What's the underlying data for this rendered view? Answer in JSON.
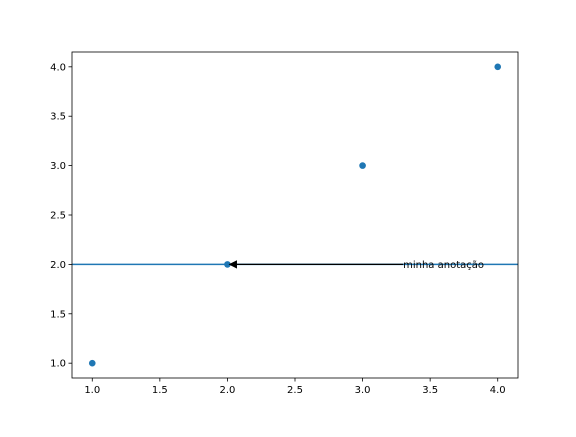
{
  "chart_data": {
    "type": "scatter",
    "series": [
      {
        "x": [
          1.0,
          2.0,
          3.0,
          4.0
        ],
        "y": [
          1.0,
          2.0,
          3.0,
          4.0
        ],
        "color": "#1f77b4"
      }
    ],
    "hline": {
      "y": 2.0,
      "color": "#1f77b4"
    },
    "annotation": {
      "text": "minha anotação",
      "point_xy": [
        2.0,
        2.0
      ],
      "text_xy": [
        3.3,
        2.0
      ],
      "arrow_color": "#000000"
    },
    "xlim": [
      0.85,
      4.15
    ],
    "ylim": [
      0.85,
      4.15
    ],
    "xticks": [
      1.0,
      1.5,
      2.0,
      2.5,
      3.0,
      3.5,
      4.0
    ],
    "yticks": [
      1.0,
      1.5,
      2.0,
      2.5,
      3.0,
      3.5,
      4.0
    ],
    "xtick_labels": [
      "1.0",
      "1.5",
      "2.0",
      "2.5",
      "3.0",
      "3.5",
      "4.0"
    ],
    "ytick_labels": [
      "1.0",
      "1.5",
      "2.0",
      "2.5",
      "3.0",
      "3.5",
      "4.0"
    ],
    "title": "",
    "xlabel": "",
    "ylabel": "",
    "grid": false
  }
}
